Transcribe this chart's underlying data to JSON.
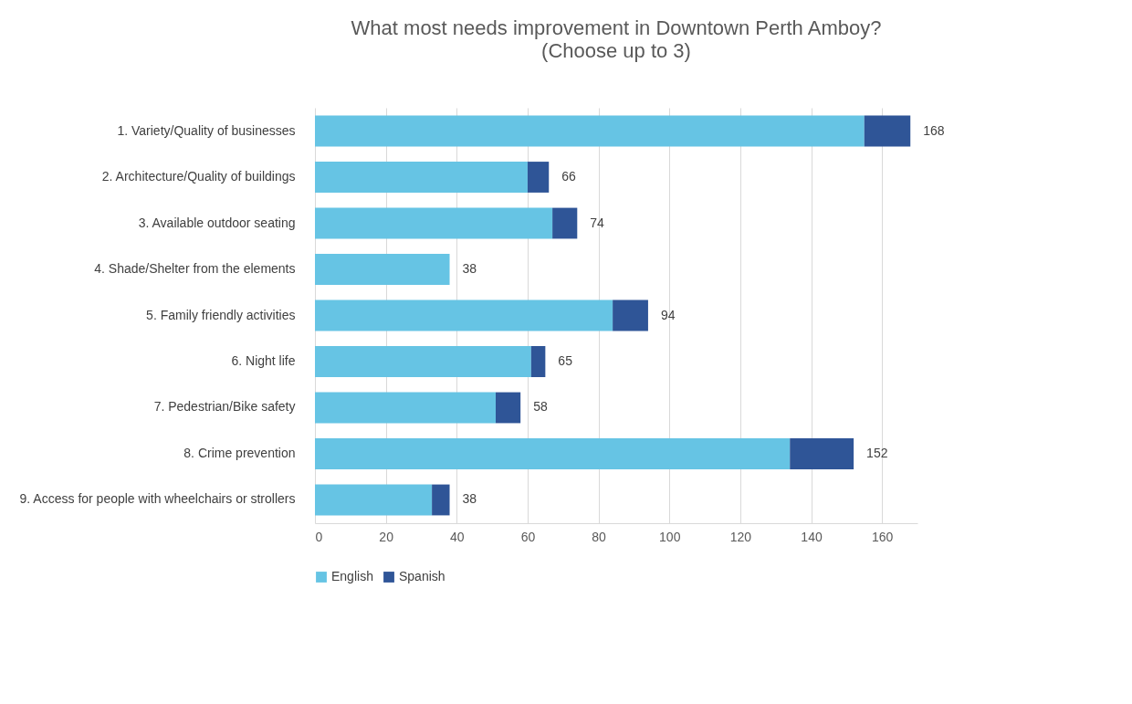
{
  "chart_data": {
    "type": "bar",
    "orientation": "horizontal",
    "stacked": true,
    "title": "What most needs improvement in Downtown Perth Amboy?",
    "subtitle": "(Choose up to 3)",
    "categories": [
      "1. Variety/Quality of businesses",
      "2. Architecture/Quality of buildings",
      "3. Available outdoor seating",
      "4. Shade/Shelter from the elements",
      "5. Family friendly activities",
      "6. Night life",
      "7. Pedestrian/Bike safety",
      "8. Crime prevention",
      "9. Access for people with wheelchairs or strollers"
    ],
    "series": [
      {
        "name": "English",
        "color": "#66c4e4",
        "values": [
          155,
          60,
          67,
          38,
          84,
          61,
          51,
          134,
          33
        ]
      },
      {
        "name": "Spanish",
        "color": "#2f5597",
        "values": [
          13,
          6,
          7,
          0,
          10,
          4,
          7,
          18,
          5
        ]
      }
    ],
    "totals": [
      "168",
      "66",
      "74",
      "38",
      "94",
      "65",
      "58",
      "152",
      "38"
    ],
    "xlim": [
      0,
      170
    ],
    "xticks": [
      0,
      20,
      40,
      60,
      80,
      100,
      120,
      140,
      160
    ],
    "grid": "x",
    "legend": "bottom"
  }
}
